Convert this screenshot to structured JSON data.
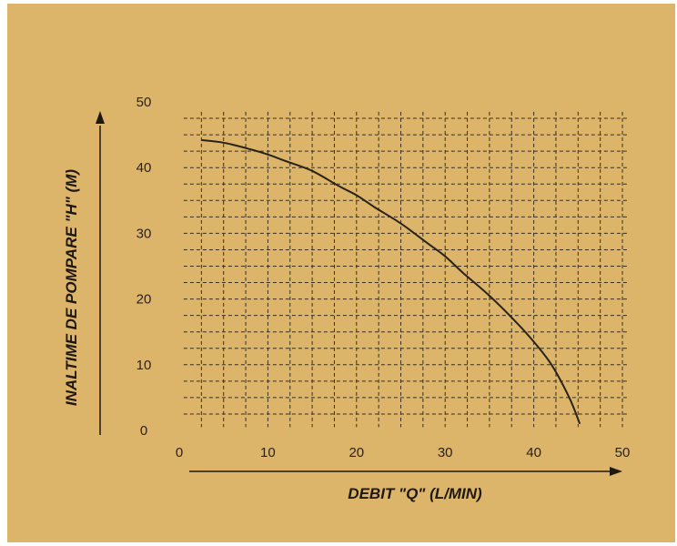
{
  "colors": {
    "background": "#dcb46a",
    "grid": "#3a2f1f",
    "curve": "#2a2418",
    "text": "#2b2316"
  },
  "chart_data": {
    "type": "line",
    "title": "",
    "xlabel": "DEBIT \"Q\" (L/MIN)",
    "ylabel": "INALTIME DE POMPARE \"H\" (M)",
    "xlim": [
      0,
      50
    ],
    "ylim": [
      0,
      50
    ],
    "x_ticks": [
      "0",
      "10",
      "20",
      "30",
      "40",
      "50"
    ],
    "y_ticks": [
      "0",
      "10",
      "20",
      "30",
      "40",
      "50"
    ],
    "grid": true,
    "series": [
      {
        "x": [
          2.5,
          5,
          8,
          10,
          12,
          15,
          18,
          20,
          22,
          25,
          28,
          30,
          32,
          35,
          38,
          40,
          42,
          44,
          45.2
        ],
        "y": [
          44.2,
          43.8,
          42.8,
          42,
          41,
          39.5,
          37.2,
          35.8,
          34,
          31.5,
          28.5,
          26.5,
          24,
          20.5,
          16.5,
          13.5,
          10,
          5,
          1
        ]
      }
    ]
  }
}
